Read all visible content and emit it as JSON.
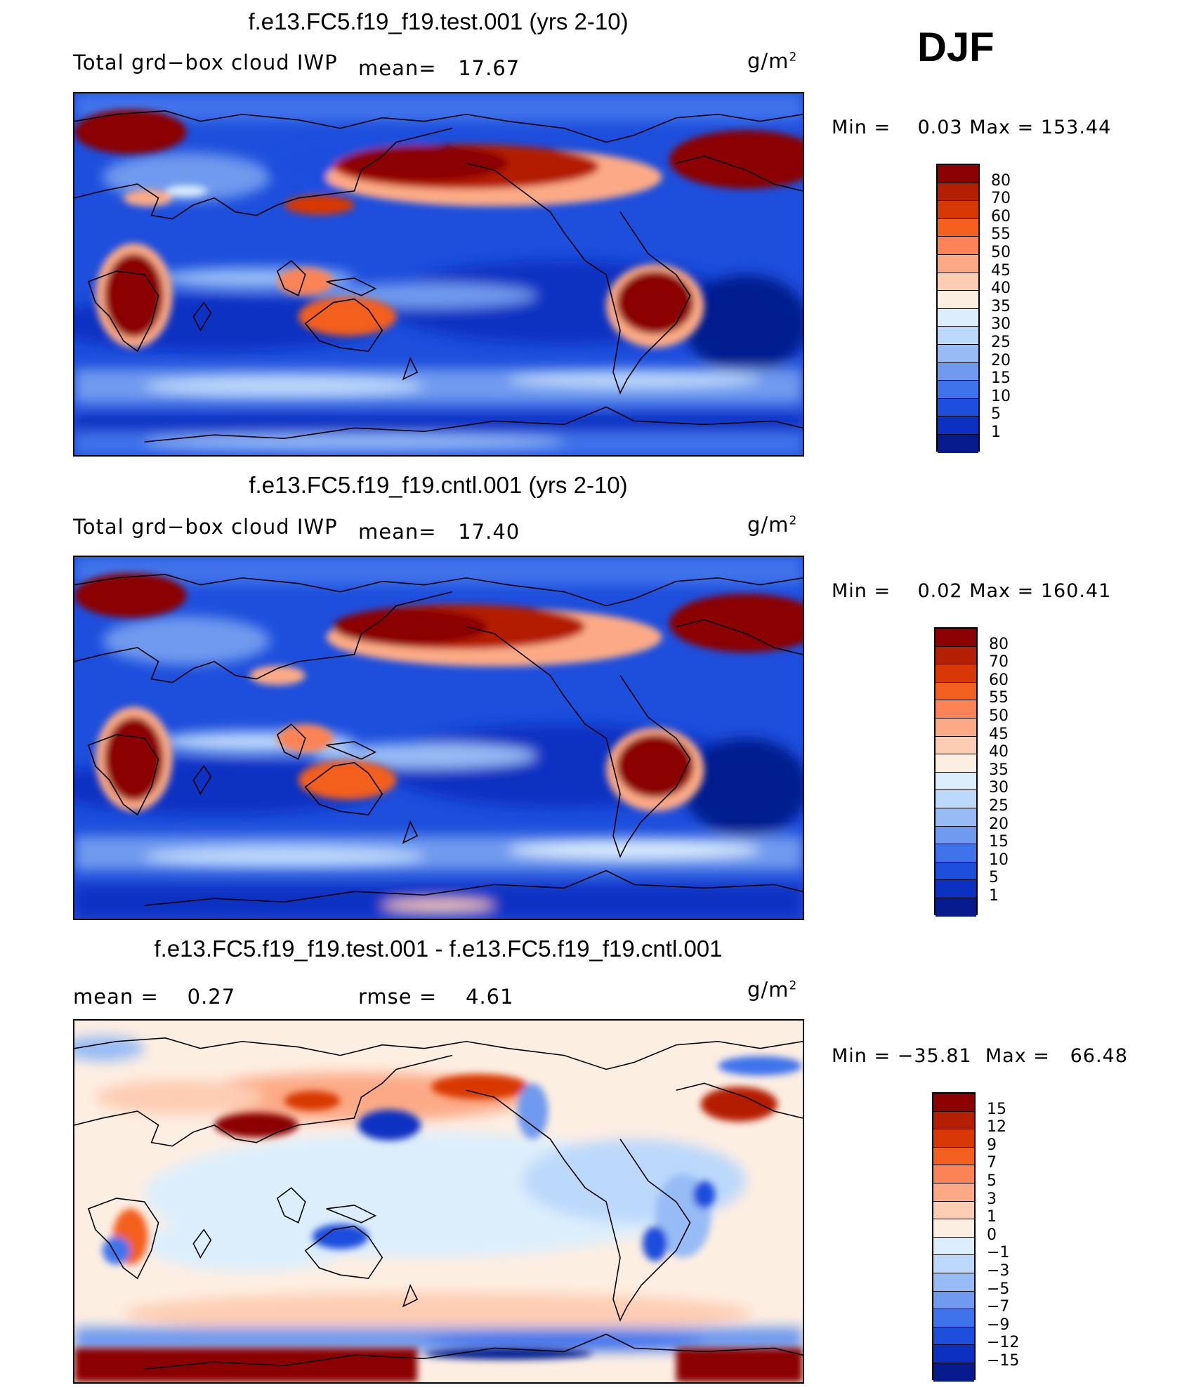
{
  "season": "DJF",
  "units_label": "g/m",
  "units_exp": "2",
  "panels": [
    {
      "title": "f.e13.FC5.f19_f19.test.001 (yrs 2-10)",
      "left_label": "Total grd−box cloud IWP",
      "mean_label": "mean=",
      "mean_value": "17.67",
      "min_label": "Min =",
      "min_value": "0.03",
      "max_label": "Max =",
      "max_value": "153.44"
    },
    {
      "title": "f.e13.FC5.f19_f19.cntl.001 (yrs 2-10)",
      "left_label": "Total grd−box cloud IWP",
      "mean_label": "mean=",
      "mean_value": "17.40",
      "min_label": "Min =",
      "min_value": "0.02",
      "max_label": "Max =",
      "max_value": "160.41"
    },
    {
      "title": "f.e13.FC5.f19_f19.test.001 - f.e13.FC5.f19_f19.cntl.001",
      "mean_label": "mean =",
      "mean_value": "0.27",
      "rmse_label": "rmse =",
      "rmse_value": "4.61",
      "min_label": "Min =",
      "min_value": "−35.81",
      "max_label": "Max =",
      "max_value": "66.48"
    }
  ],
  "chart_data": [
    {
      "type": "heatmap",
      "title": "f.e13.FC5.f19_f19.test.001 (yrs 2-10)",
      "variable": "Total grd-box cloud IWP",
      "units": "g/m2",
      "mean": 17.67,
      "min": 0.03,
      "max": 153.44,
      "levels": [
        "80",
        "70",
        "60",
        "55",
        "50",
        "45",
        "40",
        "35",
        "30",
        "25",
        "20",
        "15",
        "10",
        "5",
        "1"
      ],
      "colors": [
        "#8b0000",
        "#b41e02",
        "#d83806",
        "#f35f1f",
        "#fb8355",
        "#fcaa86",
        "#fdcdb3",
        "#fdeee2",
        "#dceefc",
        "#bcd8fb",
        "#97bcf5",
        "#6f9aee",
        "#3f73eb",
        "#1d4edc",
        "#0b30c2",
        "#061a8e"
      ]
    },
    {
      "type": "heatmap",
      "title": "f.e13.FC5.f19_f19.cntl.001 (yrs 2-10)",
      "variable": "Total grd-box cloud IWP",
      "units": "g/m2",
      "mean": 17.4,
      "min": 0.02,
      "max": 160.41,
      "levels": [
        "80",
        "70",
        "60",
        "55",
        "50",
        "45",
        "40",
        "35",
        "30",
        "25",
        "20",
        "15",
        "10",
        "5",
        "1"
      ],
      "colors": [
        "#8b0000",
        "#b41e02",
        "#d83806",
        "#f35f1f",
        "#fb8355",
        "#fcaa86",
        "#fdcdb3",
        "#fdeee2",
        "#dceefc",
        "#bcd8fb",
        "#97bcf5",
        "#6f9aee",
        "#3f73eb",
        "#1d4edc",
        "#0b30c2",
        "#061a8e"
      ]
    },
    {
      "type": "heatmap",
      "title": "f.e13.FC5.f19_f19.test.001 - f.e13.FC5.f19_f19.cntl.001",
      "units": "g/m2",
      "mean": 0.27,
      "rmse": 4.61,
      "min": -35.81,
      "max": 66.48,
      "levels": [
        "15",
        "12",
        "9",
        "7",
        "5",
        "3",
        "1",
        "0",
        "−1",
        "−3",
        "−5",
        "−7",
        "−9",
        "−12",
        "−15"
      ],
      "colors": [
        "#8b0000",
        "#b41e02",
        "#d83806",
        "#f35f1f",
        "#fb8355",
        "#fcaa86",
        "#fdcdb3",
        "#fdeee2",
        "#dceefc",
        "#bcd8fb",
        "#97bcf5",
        "#6f9aee",
        "#3f73eb",
        "#1d4edc",
        "#0b30c2",
        "#061a8e"
      ]
    }
  ]
}
